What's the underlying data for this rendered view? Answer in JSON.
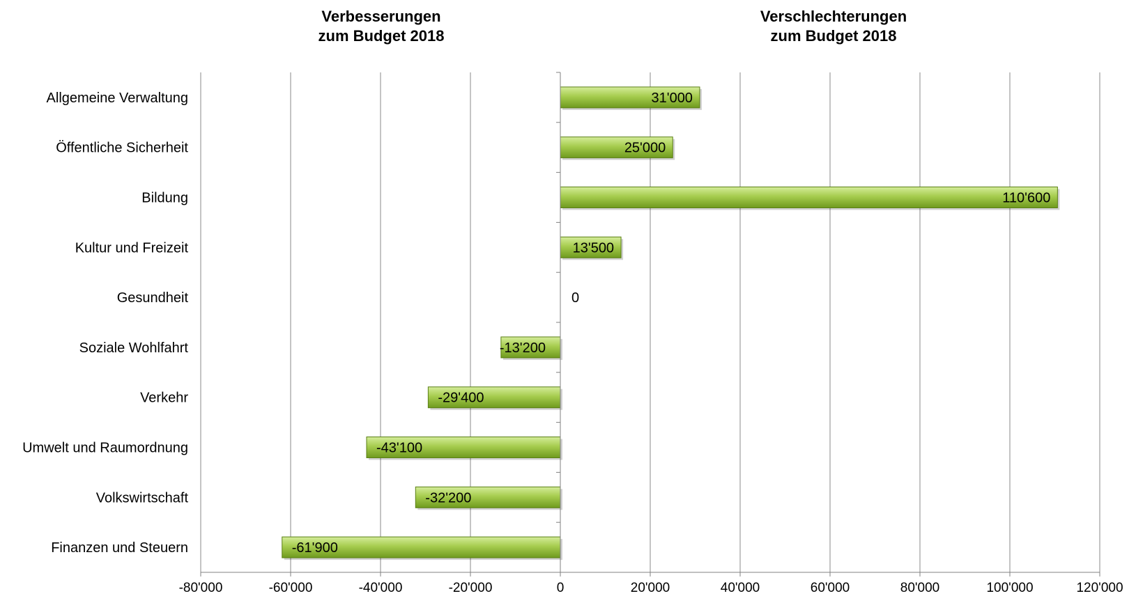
{
  "headings": {
    "left": [
      "Verbesserungen",
      "zum Budget 2018"
    ],
    "right": [
      "Verschlechterungen",
      "zum Budget 2018"
    ]
  },
  "colors": {
    "bar_light": "#d4ec9a",
    "bar_mid": "#a6cc4e",
    "bar_dark": "#6f9a1e",
    "bar_edge": "#5a7f14",
    "grid": "#888888",
    "axis": "#808080"
  },
  "chart_data": {
    "type": "bar",
    "orientation": "horizontal",
    "categories": [
      "Allgemeine Verwaltung",
      "Öffentliche Sicherheit",
      "Bildung",
      "Kultur und Freizeit",
      "Gesundheit",
      "Soziale Wohlfahrt",
      "Verkehr",
      "Umwelt und Raumordnung",
      "Volkswirtschaft",
      "Finanzen und Steuern"
    ],
    "values": [
      31000,
      25000,
      110600,
      13500,
      0,
      -13200,
      -29400,
      -43100,
      -32200,
      -61900
    ],
    "data_labels": [
      "31'000",
      "25'000",
      "110'600",
      "13'500",
      "0",
      "-13'200",
      "-29'400",
      "-43'100",
      "-32'200",
      "-61'900"
    ],
    "xlim": [
      -80000,
      120000
    ],
    "xticks": [
      -80000,
      -60000,
      -40000,
      -20000,
      0,
      20000,
      40000,
      60000,
      80000,
      100000,
      120000
    ],
    "xtick_labels": [
      "-80'000",
      "-60'000",
      "-40'000",
      "-20'000",
      "0",
      "20'000",
      "40'000",
      "60'000",
      "80'000",
      "100'000",
      "120'000"
    ],
    "grid": "vertical",
    "legend": "none"
  }
}
